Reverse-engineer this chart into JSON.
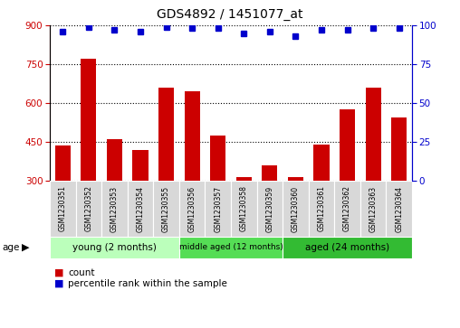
{
  "title": "GDS4892 / 1451077_at",
  "samples": [
    "GSM1230351",
    "GSM1230352",
    "GSM1230353",
    "GSM1230354",
    "GSM1230355",
    "GSM1230356",
    "GSM1230357",
    "GSM1230358",
    "GSM1230359",
    "GSM1230360",
    "GSM1230361",
    "GSM1230362",
    "GSM1230363",
    "GSM1230364"
  ],
  "counts": [
    435,
    770,
    460,
    420,
    660,
    645,
    475,
    315,
    360,
    315,
    440,
    575,
    660,
    545
  ],
  "percentile_ranks": [
    96,
    99,
    97,
    96,
    99,
    98,
    98,
    95,
    96,
    93,
    97,
    97,
    98,
    98
  ],
  "ylim_left": [
    300,
    900
  ],
  "ylim_right": [
    0,
    100
  ],
  "yticks_left": [
    300,
    450,
    600,
    750,
    900
  ],
  "yticks_right": [
    0,
    25,
    50,
    75,
    100
  ],
  "bar_color": "#cc0000",
  "dot_color": "#0000cc",
  "groups": [
    {
      "label": "young (2 months)",
      "start": 0,
      "end": 4
    },
    {
      "label": "middle aged (12 months)",
      "start": 5,
      "end": 8
    },
    {
      "label": "aged (24 months)",
      "start": 9,
      "end": 13
    }
  ],
  "group_colors": [
    "#bbffbb",
    "#55dd55",
    "#33bb33"
  ],
  "legend_count_label": "count",
  "legend_pct_label": "percentile rank within the sample"
}
